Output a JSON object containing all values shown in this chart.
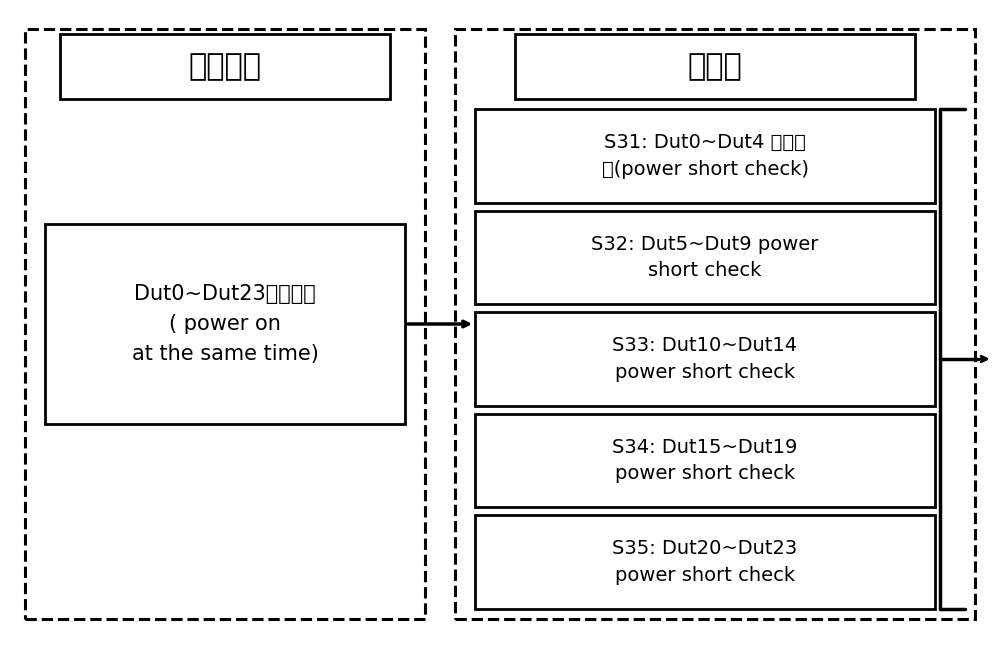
{
  "bg_color": "#ffffff",
  "title_left": "现有技术",
  "title_right": "本发明",
  "left_box_text": "Dut0~Dut23同时上电\n( power on\nat the same time)",
  "right_boxes": [
    "S31: Dut0~Dut4 短路测\n试(power short check)",
    "S32: Dut5~Dut9 power\nshort check",
    "S33: Dut10~Dut14\npower short check",
    "S34: Dut15~Dut19\npower short check",
    "S35: Dut20~Dut23\npower short check"
  ],
  "font_size_title": 22,
  "font_size_box": 15,
  "text_color": "#000000",
  "box_edge_color": "#000000",
  "dashed_color": "#000000"
}
